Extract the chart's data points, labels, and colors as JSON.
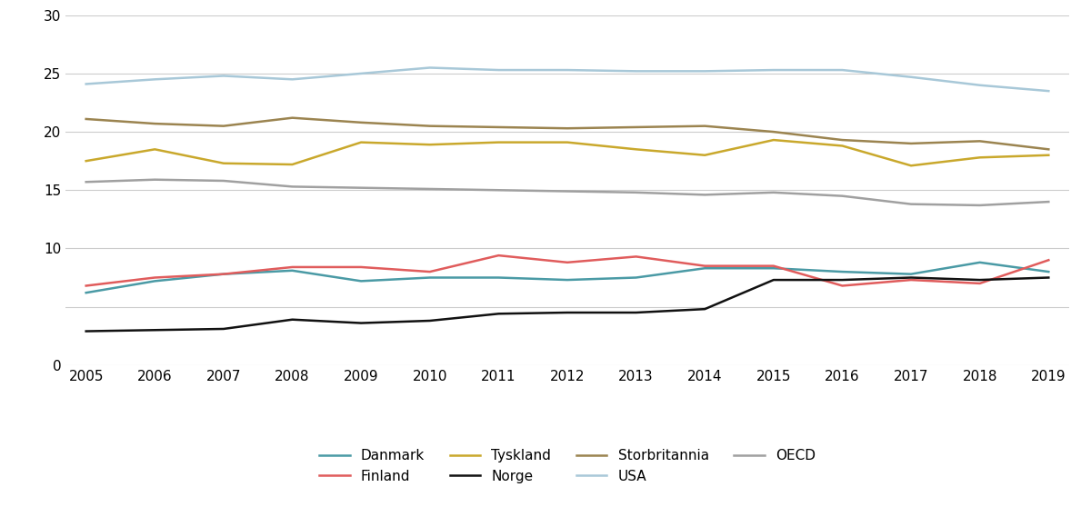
{
  "years": [
    2005,
    2006,
    2007,
    2008,
    2009,
    2010,
    2011,
    2012,
    2013,
    2014,
    2015,
    2016,
    2017,
    2018,
    2019
  ],
  "series": {
    "Danmark": {
      "values": [
        6.2,
        7.2,
        7.8,
        8.1,
        7.2,
        7.5,
        7.5,
        7.3,
        7.5,
        8.3,
        8.3,
        8.0,
        7.8,
        8.8,
        8.0
      ],
      "color": "#4A9AA5"
    },
    "Finland": {
      "values": [
        6.8,
        7.5,
        7.8,
        8.4,
        8.4,
        8.0,
        9.4,
        8.8,
        9.3,
        8.5,
        8.5,
        6.8,
        7.3,
        7.0,
        9.0
      ],
      "color": "#E05C5C"
    },
    "Tyskland": {
      "values": [
        17.5,
        18.5,
        17.3,
        17.2,
        19.1,
        18.9,
        19.1,
        19.1,
        18.5,
        18.0,
        19.3,
        18.8,
        17.1,
        17.8,
        18.0
      ],
      "color": "#C9A82C"
    },
    "Norge": {
      "values": [
        2.9,
        3.0,
        3.1,
        3.9,
        3.6,
        3.8,
        4.4,
        4.5,
        4.5,
        4.8,
        7.3,
        7.3,
        7.5,
        7.3,
        7.5
      ],
      "color": "#111111"
    },
    "Storbritannia": {
      "values": [
        21.1,
        20.7,
        20.5,
        21.2,
        20.8,
        20.5,
        20.4,
        20.3,
        20.4,
        20.5,
        20.0,
        19.3,
        19.0,
        19.2,
        18.5
      ],
      "color": "#9B8450"
    },
    "USA": {
      "values": [
        24.1,
        24.5,
        24.8,
        24.5,
        25.0,
        25.5,
        25.3,
        25.3,
        25.2,
        25.2,
        25.3,
        25.3,
        24.7,
        24.0,
        23.5
      ],
      "color": "#A8C8D8"
    },
    "OECD": {
      "values": [
        15.7,
        15.9,
        15.8,
        15.3,
        15.2,
        15.1,
        15.0,
        14.9,
        14.8,
        14.6,
        14.8,
        14.5,
        13.8,
        13.7,
        14.0
      ],
      "color": "#A0A0A0"
    }
  },
  "ylim": [
    0,
    30
  ],
  "yticks": [
    0,
    5,
    10,
    15,
    20,
    25,
    30
  ],
  "ytick_labels": [
    "0",
    "",
    "10",
    "15",
    "20",
    "25",
    "30"
  ],
  "background_color": "#ffffff",
  "grid_color": "#cccccc",
  "linewidth": 1.8,
  "legend_row1": [
    "Danmark",
    "Finland",
    "Tyskland",
    "Norge"
  ],
  "legend_row2": [
    "Storbritannia",
    "USA",
    "OECD"
  ],
  "legend_order": [
    "Danmark",
    "Finland",
    "Tyskland",
    "Norge",
    "Storbritannia",
    "USA",
    "OECD"
  ],
  "figsize": [
    12.0,
    5.58
  ],
  "dpi": 100,
  "tick_fontsize": 11,
  "legend_fontsize": 11
}
